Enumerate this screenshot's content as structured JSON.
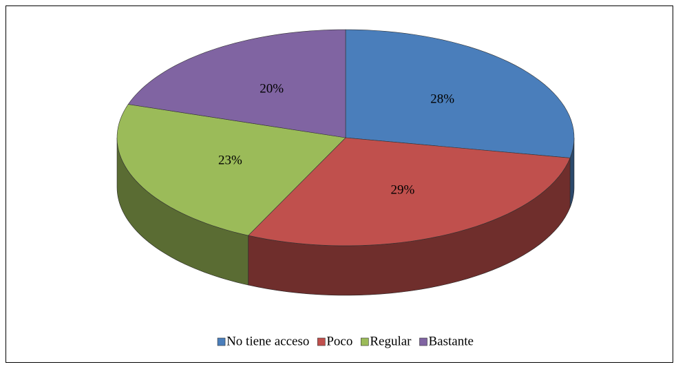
{
  "chart_data": {
    "type": "pie3d",
    "categories": [
      "No tiene acceso",
      "Poco",
      "Regular",
      "Bastante"
    ],
    "values": [
      28,
      29,
      23,
      20
    ],
    "value_labels": [
      "28%",
      "29%",
      "23%",
      "20%"
    ],
    "colors": [
      "#4a7ebb",
      "#c0504d",
      "#9bbb59",
      "#8064a2"
    ],
    "legend": "bottom"
  }
}
